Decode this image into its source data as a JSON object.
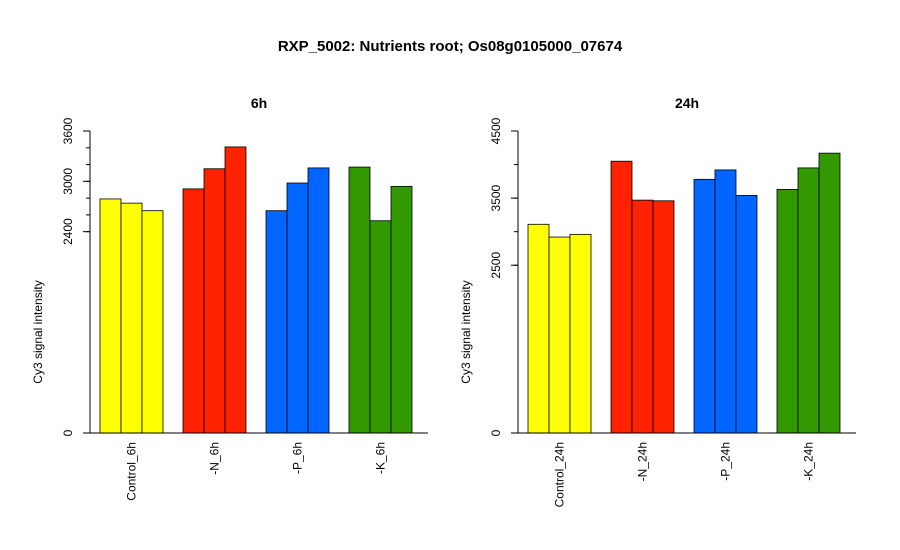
{
  "title": "RXP_5002: Nutrients root; Os08g0105000_07674",
  "chart_data": [
    {
      "type": "bar",
      "title": "6h",
      "ylabel": "Cy3 signal intensity",
      "ylim": [
        0,
        3600
      ],
      "yticks": [
        0,
        2400,
        3000,
        3600
      ],
      "ytick_labels": [
        "0",
        "2400",
        "3000",
        "3600"
      ],
      "yminor_step": 200,
      "minor_from": 2400,
      "groups": [
        {
          "label": "Control_6h",
          "color": "#ffff00",
          "values": [
            2790,
            2740,
            2650
          ]
        },
        {
          "label": "-N_6h",
          "color": "#ff2200",
          "values": [
            2910,
            3150,
            3410
          ]
        },
        {
          "label": "-P_6h",
          "color": "#0066ff",
          "values": [
            2650,
            2980,
            3160
          ]
        },
        {
          "label": "-K_6h",
          "color": "#339900",
          "values": [
            3170,
            2530,
            2940
          ]
        }
      ]
    },
    {
      "type": "bar",
      "title": "24h",
      "ylabel": "Cy3 signal intensity",
      "ylim": [
        0,
        4500
      ],
      "yticks": [
        0,
        2500,
        3500,
        4500
      ],
      "ytick_labels": [
        "0",
        "2500",
        "3500",
        "4500"
      ],
      "yminor_step": 500,
      "minor_from": 2500,
      "groups": [
        {
          "label": "Control_24h",
          "color": "#ffff00",
          "values": [
            3110,
            2920,
            2960
          ]
        },
        {
          "label": "-N_24h",
          "color": "#ff2200",
          "values": [
            4050,
            3470,
            3460
          ]
        },
        {
          "label": "-P_24h",
          "color": "#0066ff",
          "values": [
            3780,
            3920,
            3540
          ]
        },
        {
          "label": "-K_24h",
          "color": "#339900",
          "values": [
            3630,
            3950,
            4170
          ]
        }
      ]
    }
  ]
}
